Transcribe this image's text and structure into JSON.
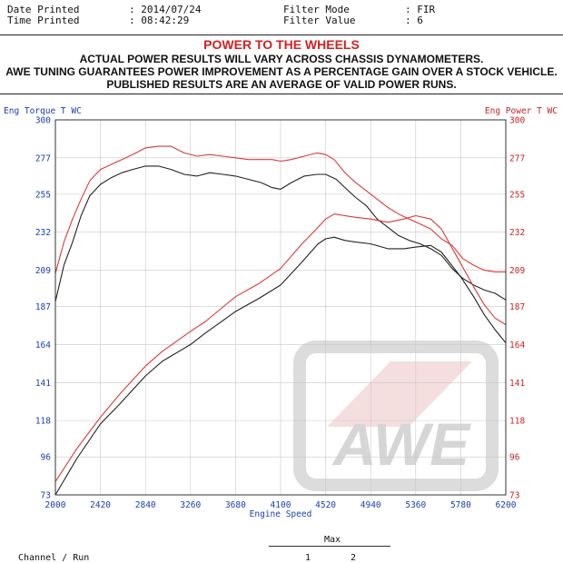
{
  "header": {
    "date_printed_label": "Date Printed",
    "date_printed_value": "2014/07/24",
    "time_printed_label": "Time Printed",
    "time_printed_value": "08:42:29",
    "filter_mode_label": "Filter Mode",
    "filter_mode_value": "FIR",
    "filter_value_label": "Filter Value",
    "filter_value_value": "6"
  },
  "banner": {
    "title": "POWER TO THE WHEELS",
    "line1": "ACTUAL POWER RESULTS WILL VARY ACROSS CHASSIS DYNAMOMETERS.",
    "line2": "AWE TUNING GUARANTEES POWER IMPROVEMENT AS A PERCENTAGE GAIN OVER A STOCK VEHICLE.",
    "line3": "PUBLISHED RESULTS ARE AN AVERAGE OF VALID POWER RUNS."
  },
  "watermark": {
    "text": "AWE"
  },
  "footer": {
    "max_label": "Max",
    "channel_run_label": "Channel / Run",
    "run_labels": [
      "1",
      "2"
    ]
  },
  "colors": {
    "run1": "#222222",
    "run2": "#d93a3a",
    "axis_left": "#1a3fb5",
    "axis_right": "#cc2222"
  },
  "chart_data": {
    "type": "line",
    "xlabel": "Engine Speed",
    "ylabel_left": "Eng Torque T WC",
    "ylabel_right": "Eng Power T WC",
    "xlim": [
      2000,
      6200
    ],
    "ylim": [
      73,
      300
    ],
    "x_ticks": [
      "2000",
      "2420",
      "2840",
      "3260",
      "3680",
      "4100",
      "4520",
      "4940",
      "5360",
      "5780",
      "6200"
    ],
    "y_ticks_left": [
      "300",
      "277",
      "255",
      "232",
      "209",
      "187",
      "164",
      "141",
      "118",
      "96",
      "73"
    ],
    "y_ticks_right": [
      "300",
      "277",
      "255",
      "232",
      "209",
      "187",
      "164",
      "141",
      "118",
      "96",
      "73"
    ],
    "grid": true,
    "series": [
      {
        "metric": "torque",
        "run": "1",
        "x": [
          2000,
          2080,
          2160,
          2240,
          2320,
          2420,
          2520,
          2620,
          2720,
          2840,
          2960,
          3080,
          3200,
          3320,
          3440,
          3560,
          3680,
          3800,
          3920,
          4020,
          4100,
          4200,
          4320,
          4440,
          4520,
          4620,
          4700,
          4800,
          4900,
          5000,
          5100,
          5200,
          5300,
          5400,
          5500,
          5600,
          5700,
          5800,
          5900,
          6000,
          6100,
          6200
        ],
        "y": [
          190,
          212,
          226,
          242,
          254,
          261,
          265,
          268,
          270,
          272,
          272,
          270,
          267,
          266,
          268,
          267,
          266,
          264,
          262,
          259,
          258,
          262,
          266,
          267,
          267,
          264,
          259,
          253,
          248,
          240,
          235,
          230,
          227,
          225,
          222,
          218,
          210,
          204,
          200,
          197,
          195,
          191
        ]
      },
      {
        "metric": "torque",
        "run": "2",
        "x": [
          2000,
          2080,
          2160,
          2240,
          2320,
          2420,
          2520,
          2620,
          2720,
          2840,
          2960,
          3080,
          3200,
          3320,
          3440,
          3560,
          3680,
          3800,
          3920,
          4020,
          4100,
          4200,
          4320,
          4440,
          4520,
          4600,
          4700,
          4800,
          4900,
          5000,
          5100,
          5200,
          5300,
          5400,
          5500,
          5600,
          5700,
          5800,
          5900,
          6000,
          6100,
          6200
        ],
        "y": [
          207,
          226,
          240,
          252,
          263,
          270,
          273,
          276,
          279,
          283,
          284,
          284,
          280,
          278,
          279,
          278,
          277,
          276,
          276,
          276,
          275,
          276,
          278,
          280,
          279,
          276,
          268,
          262,
          257,
          252,
          247,
          243,
          240,
          237,
          234,
          228,
          224,
          216,
          212,
          209,
          208,
          208
        ]
      },
      {
        "metric": "power",
        "run": "1",
        "x": [
          2000,
          2200,
          2420,
          2600,
          2840,
          3000,
          3260,
          3400,
          3680,
          3900,
          4100,
          4300,
          4450,
          4520,
          4600,
          4700,
          4800,
          4940,
          5100,
          5250,
          5360,
          5500,
          5600,
          5780,
          5900,
          6000,
          6100,
          6200
        ],
        "y": [
          73,
          95,
          116,
          128,
          145,
          154,
          164,
          171,
          184,
          192,
          200,
          214,
          225,
          228,
          229,
          227,
          226,
          225,
          222,
          222,
          223,
          224,
          220,
          205,
          193,
          182,
          173,
          165
        ]
      },
      {
        "metric": "power",
        "run": "2",
        "x": [
          2000,
          2200,
          2420,
          2600,
          2840,
          3000,
          3260,
          3400,
          3680,
          3900,
          4100,
          4300,
          4450,
          4520,
          4600,
          4700,
          4800,
          4940,
          5100,
          5250,
          5360,
          5500,
          5600,
          5780,
          5900,
          6000,
          6100,
          6200
        ],
        "y": [
          81,
          101,
          120,
          134,
          151,
          160,
          172,
          178,
          193,
          201,
          210,
          225,
          235,
          240,
          243,
          242,
          241,
          240,
          238,
          240,
          242,
          240,
          234,
          213,
          199,
          188,
          180,
          176
        ]
      }
    ]
  }
}
